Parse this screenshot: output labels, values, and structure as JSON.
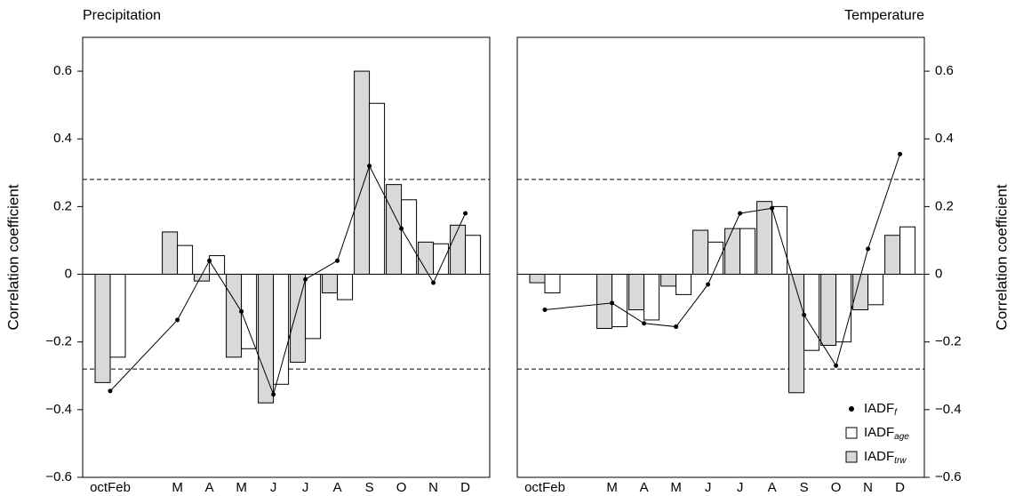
{
  "chart_data": [
    {
      "type": "bar",
      "title": "Precipitation",
      "ylabel": "Correlation coefficient",
      "y_axis_side": "left",
      "categories": [
        "octFeb",
        "M",
        "A",
        "M",
        "J",
        "J",
        "A",
        "S",
        "O",
        "N",
        "D"
      ],
      "series": [
        {
          "type": "bar",
          "color": "#d9d9d9",
          "values": [
            -0.32,
            0.125,
            -0.02,
            -0.245,
            -0.38,
            -0.26,
            -0.055,
            0.6,
            0.265,
            0.095,
            0.145
          ]
        },
        {
          "type": "bar",
          "color": "#ffffff",
          "values": [
            -0.245,
            0.085,
            0.055,
            -0.22,
            -0.325,
            -0.19,
            -0.075,
            0.505,
            0.22,
            0.09,
            0.115
          ]
        },
        {
          "type": "line",
          "color": "#000000",
          "values": [
            -0.345,
            -0.135,
            0.04,
            -0.11,
            -0.355,
            -0.015,
            0.04,
            0.32,
            0.135,
            -0.025,
            0.18
          ]
        }
      ],
      "hlines": [
        0.28,
        -0.28
      ],
      "ylim": [
        -0.6,
        0.7
      ],
      "yticks": [
        {
          "value": -0.6,
          "label": "−0.6"
        },
        {
          "value": -0.4,
          "label": "−0.4"
        },
        {
          "value": -0.2,
          "label": "−0.2"
        },
        0,
        0.2,
        0.4,
        0.6
      ]
    },
    {
      "type": "bar",
      "title": "Temperature",
      "ylabel": "Correlation coefficient",
      "y_axis_side": "right",
      "legend": "lower right",
      "categories": [
        "octFeb",
        "M",
        "A",
        "M",
        "J",
        "J",
        "A",
        "S",
        "O",
        "N",
        "D"
      ],
      "series": [
        {
          "type": "bar",
          "name": "IADF",
          "subscript": "trw",
          "color": "#d9d9d9",
          "values": [
            -0.025,
            -0.16,
            -0.105,
            -0.035,
            0.13,
            0.135,
            0.215,
            -0.35,
            -0.21,
            -0.105,
            0.115
          ]
        },
        {
          "type": "bar",
          "name": "IADF",
          "subscript": "age",
          "color": "#ffffff",
          "values": [
            -0.055,
            -0.155,
            -0.135,
            -0.06,
            0.095,
            0.135,
            0.2,
            -0.225,
            -0.2,
            -0.09,
            0.14
          ]
        },
        {
          "type": "line",
          "name": "IADF",
          "subscript": "f",
          "color": "#000000",
          "values": [
            -0.105,
            -0.085,
            -0.145,
            -0.155,
            -0.03,
            0.18,
            0.195,
            -0.12,
            -0.27,
            0.075,
            0.355
          ]
        }
      ],
      "hlines": [
        0.28,
        -0.28
      ],
      "ylim": [
        -0.6,
        0.7
      ],
      "yticks": [
        {
          "value": -0.6,
          "label": "−0.6"
        },
        {
          "value": -0.4,
          "label": "−0.4"
        },
        {
          "value": -0.2,
          "label": "−0.2"
        },
        0,
        0.2,
        0.4,
        0.6
      ]
    }
  ]
}
